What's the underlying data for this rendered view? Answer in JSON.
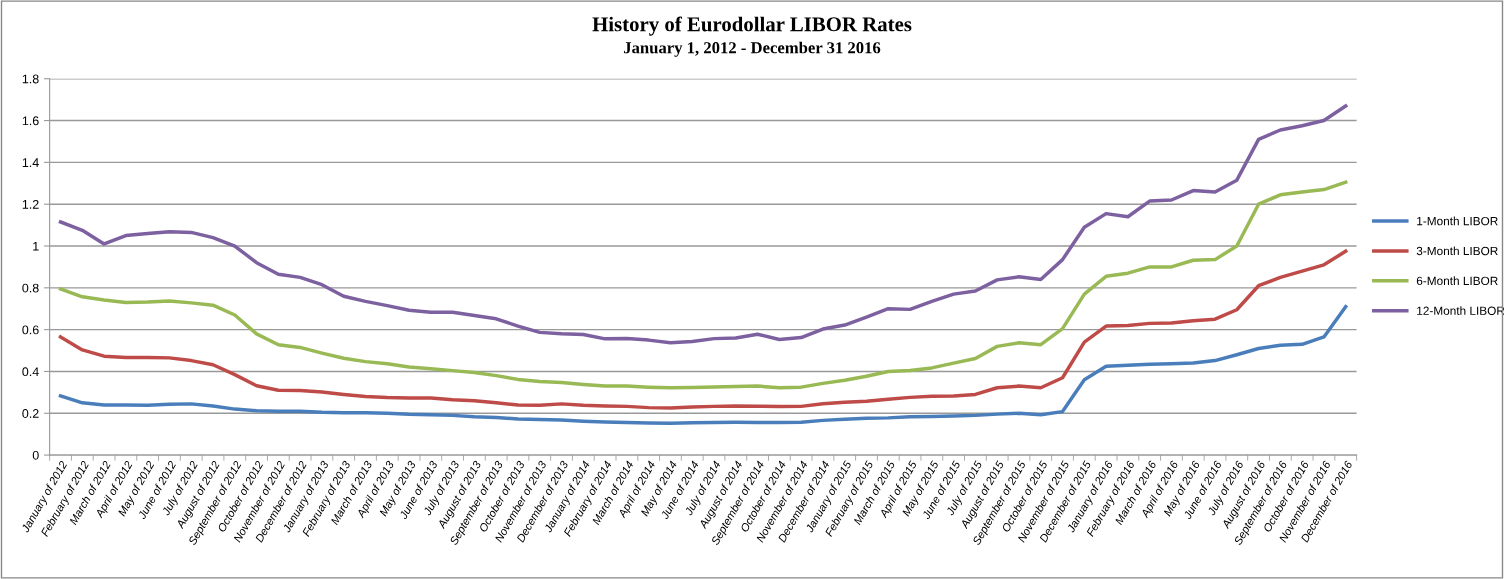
{
  "chart_data": {
    "type": "line",
    "title": "History of Eurodollar LIBOR Rates",
    "subtitle": "January 1, 2012 - December 31 2016",
    "categories": [
      "January of 2012",
      "February of 2012",
      "March of 2012",
      "April of 2012",
      "May of 2012",
      "June of 2012",
      "July of 2012",
      "August of 2012",
      "September of 2012",
      "October of 2012",
      "November of 2012",
      "December of 2012",
      "January of 2013",
      "February of 2013",
      "March of 2013",
      "April of 2013",
      "May of 2013",
      "June of 2013",
      "July of 2013",
      "August of 2013",
      "September of 2013",
      "October of 2013",
      "November of 2013",
      "December of 2013",
      "January of 2014",
      "February of 2014",
      "March of 2014",
      "April of 2014",
      "May of 2014",
      "June of 2014",
      "July of 2014",
      "August of 2014",
      "September of 2014",
      "October of 2014",
      "November of 2014",
      "December of 2014",
      "January of 2015",
      "February of 2015",
      "March of 2015",
      "April of 2015",
      "May of 2015",
      "June of 2015",
      "July of 2015",
      "August of 2015",
      "September of 2015",
      "October of 2015",
      "November of 2015",
      "December of 2015",
      "January of 2016",
      "February of 2016",
      "March of 2016",
      "April of 2016",
      "May of 2016",
      "June of 2016",
      "July of 2016",
      "August of 2016",
      "September of 2016",
      "October of 2016",
      "November of 2016",
      "December of 2016"
    ],
    "series": [
      {
        "name": "1-Month LIBOR",
        "color": "#4a7ebb",
        "values": [
          0.283,
          0.25,
          0.24,
          0.24,
          0.238,
          0.243,
          0.245,
          0.235,
          0.22,
          0.212,
          0.21,
          0.21,
          0.205,
          0.203,
          0.203,
          0.2,
          0.195,
          0.193,
          0.19,
          0.183,
          0.18,
          0.173,
          0.17,
          0.168,
          0.162,
          0.158,
          0.156,
          0.153,
          0.152,
          0.155,
          0.156,
          0.157,
          0.156,
          0.156,
          0.157,
          0.166,
          0.171,
          0.176,
          0.178,
          0.183,
          0.185,
          0.187,
          0.19,
          0.196,
          0.2,
          0.193,
          0.208,
          0.36,
          0.425,
          0.43,
          0.435,
          0.437,
          0.44,
          0.452,
          0.48,
          0.51,
          0.525,
          0.53,
          0.565,
          0.71
        ]
      },
      {
        "name": "3-Month LIBOR",
        "color": "#be4b48",
        "values": [
          0.565,
          0.503,
          0.473,
          0.467,
          0.467,
          0.465,
          0.452,
          0.432,
          0.385,
          0.332,
          0.31,
          0.309,
          0.302,
          0.29,
          0.28,
          0.275,
          0.273,
          0.273,
          0.265,
          0.26,
          0.25,
          0.24,
          0.238,
          0.245,
          0.238,
          0.235,
          0.233,
          0.227,
          0.225,
          0.23,
          0.233,
          0.235,
          0.234,
          0.232,
          0.233,
          0.246,
          0.253,
          0.258,
          0.267,
          0.276,
          0.281,
          0.283,
          0.29,
          0.322,
          0.33,
          0.322,
          0.37,
          0.54,
          0.617,
          0.62,
          0.63,
          0.632,
          0.643,
          0.65,
          0.695,
          0.81,
          0.85,
          0.88,
          0.91,
          0.975
        ]
      },
      {
        "name": "6-Month LIBOR",
        "color": "#98b954",
        "values": [
          0.795,
          0.757,
          0.742,
          0.73,
          0.732,
          0.737,
          0.728,
          0.717,
          0.67,
          0.58,
          0.528,
          0.515,
          0.488,
          0.463,
          0.447,
          0.437,
          0.421,
          0.413,
          0.404,
          0.395,
          0.38,
          0.362,
          0.352,
          0.347,
          0.338,
          0.33,
          0.33,
          0.325,
          0.322,
          0.323,
          0.326,
          0.328,
          0.33,
          0.322,
          0.325,
          0.343,
          0.358,
          0.377,
          0.4,
          0.405,
          0.417,
          0.44,
          0.462,
          0.52,
          0.537,
          0.528,
          0.605,
          0.77,
          0.855,
          0.87,
          0.9,
          0.9,
          0.932,
          0.935,
          1.0,
          1.2,
          1.245,
          1.258,
          1.27,
          1.305
        ]
      },
      {
        "name": "12-Month LIBOR",
        "color": "#7d60a0",
        "values": [
          1.115,
          1.075,
          1.01,
          1.05,
          1.06,
          1.068,
          1.065,
          1.04,
          1.0,
          0.92,
          0.865,
          0.85,
          0.815,
          0.76,
          0.735,
          0.715,
          0.693,
          0.683,
          0.683,
          0.668,
          0.652,
          0.617,
          0.587,
          0.58,
          0.577,
          0.556,
          0.558,
          0.55,
          0.537,
          0.543,
          0.557,
          0.56,
          0.578,
          0.553,
          0.562,
          0.603,
          0.622,
          0.66,
          0.7,
          0.697,
          0.735,
          0.77,
          0.785,
          0.838,
          0.853,
          0.84,
          0.935,
          1.09,
          1.155,
          1.14,
          1.215,
          1.22,
          1.265,
          1.258,
          1.315,
          1.51,
          1.555,
          1.575,
          1.6,
          1.67
        ]
      }
    ],
    "ylim": [
      0,
      1.8
    ],
    "yticks": [
      0,
      0.2,
      0.4,
      0.6,
      0.8,
      1,
      1.2,
      1.4,
      1.6,
      1.8
    ],
    "grid": "y",
    "legend": "right",
    "marker": "none",
    "line_style": "solid"
  }
}
